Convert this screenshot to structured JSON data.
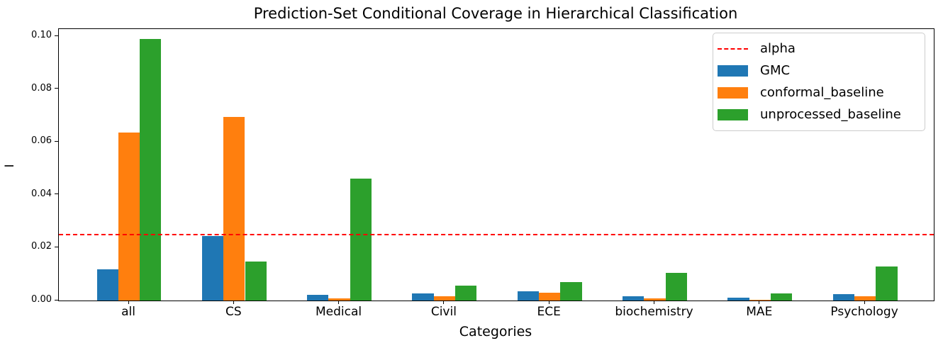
{
  "chart_data": {
    "type": "bar",
    "title": "Prediction-Set Conditional Coverage in Hierarchical Classification",
    "xlabel": "Categories",
    "ylabel": "I",
    "categories": [
      "all",
      "CS",
      "Medical",
      "Civil",
      "ECE",
      "biochemistry",
      "MAE",
      "Psychology"
    ],
    "series": [
      {
        "name": "GMC",
        "color": "#1f77b4",
        "values": [
          0.0118,
          0.0243,
          0.0022,
          0.0028,
          0.0035,
          0.0017,
          0.001,
          0.0023
        ]
      },
      {
        "name": "conformal_baseline",
        "color": "#ff7f0e",
        "values": [
          0.0635,
          0.0695,
          0.0009,
          0.0016,
          0.003,
          0.0009,
          0.0004,
          0.0016
        ]
      },
      {
        "name": "unprocessed_baseline",
        "color": "#2ca02c",
        "values": [
          0.099,
          0.0147,
          0.0462,
          0.0056,
          0.0071,
          0.0105,
          0.0027,
          0.013
        ]
      }
    ],
    "alpha_line": {
      "label": "alpha",
      "value": 0.025,
      "color": "#ff0000",
      "style": "dashed"
    },
    "ytick_labels": [
      "0.00",
      "0.02",
      "0.04",
      "0.06",
      "0.08",
      "0.10"
    ],
    "yticks": [
      0.0,
      0.02,
      0.04,
      0.06,
      0.08,
      0.1
    ],
    "ylim": [
      0,
      0.1027
    ],
    "grid": false,
    "legend": {
      "position": "upper right",
      "entries": [
        "alpha",
        "GMC",
        "conformal_baseline",
        "unprocessed_baseline"
      ]
    }
  }
}
